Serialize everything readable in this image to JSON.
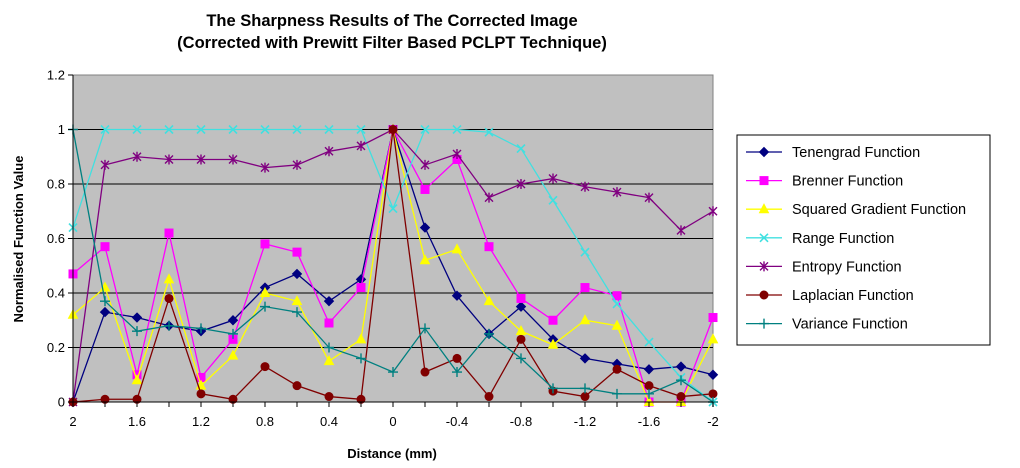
{
  "chart_data": {
    "type": "line",
    "title": "The Sharpness Results of The Corrected Image",
    "subtitle": "(Corrected with Prewitt Filter Based PCLPT Technique)",
    "xlabel": "Distance (mm)",
    "ylabel": "Normalised Function Value",
    "x": [
      2,
      1.8,
      1.6,
      1.4,
      1.2,
      1.0,
      0.8,
      0.6,
      0.4,
      0.2,
      0,
      -0.2,
      -0.4,
      -0.6,
      -0.8,
      -1.0,
      -1.2,
      -1.4,
      -1.6,
      -1.8,
      -2
    ],
    "x_tick_labels": [
      "2",
      "1.6",
      "1.2",
      "0.8",
      "0.4",
      "0",
      "-0.4",
      "-0.8",
      "-1.2",
      "-1.6",
      "-2"
    ],
    "y_tick_labels": [
      "0",
      "0.2",
      "0.4",
      "0.6",
      "0.8",
      "1",
      "1.2"
    ],
    "ylim": [
      0,
      1.2
    ],
    "grid": "horizontal",
    "plot_background": "#c0c0c0",
    "legend_position": "right",
    "series": [
      {
        "name": "Tenengrad Function",
        "color": "#000080",
        "marker": "diamond",
        "values": [
          0.0,
          0.33,
          0.31,
          0.28,
          0.26,
          0.3,
          0.42,
          0.47,
          0.37,
          0.45,
          1.0,
          0.64,
          0.39,
          0.25,
          0.35,
          0.23,
          0.16,
          0.14,
          0.12,
          0.13,
          0.1
        ]
      },
      {
        "name": "Brenner Function",
        "color": "#ff00ff",
        "marker": "square",
        "values": [
          0.47,
          0.57,
          0.1,
          0.62,
          0.09,
          0.23,
          0.58,
          0.55,
          0.29,
          0.42,
          1.0,
          0.78,
          0.89,
          0.57,
          0.38,
          0.3,
          0.42,
          0.39,
          0.0,
          0.0,
          0.31
        ]
      },
      {
        "name": "Squared Gradient Function",
        "color": "#ffff00",
        "marker": "triangle",
        "values": [
          0.32,
          0.42,
          0.08,
          0.45,
          0.06,
          0.17,
          0.4,
          0.37,
          0.15,
          0.23,
          1.0,
          0.52,
          0.56,
          0.37,
          0.26,
          0.21,
          0.3,
          0.28,
          0.0,
          0.0,
          0.23
        ]
      },
      {
        "name": "Range Function",
        "color": "#40e0e0",
        "marker": "x",
        "values": [
          0.64,
          1.0,
          1.0,
          1.0,
          1.0,
          1.0,
          1.0,
          1.0,
          1.0,
          1.0,
          0.71,
          1.0,
          1.0,
          0.99,
          0.93,
          0.74,
          0.55,
          0.36,
          0.22,
          0.09,
          0.0
        ]
      },
      {
        "name": "Entropy Function",
        "color": "#800080",
        "marker": "star",
        "values": [
          0.0,
          0.87,
          0.9,
          0.89,
          0.89,
          0.89,
          0.86,
          0.87,
          0.92,
          0.94,
          1.0,
          0.87,
          0.91,
          0.75,
          0.8,
          0.82,
          0.79,
          0.77,
          0.75,
          0.63,
          0.7
        ]
      },
      {
        "name": "Laplacian Function",
        "color": "#800000",
        "marker": "circle",
        "values": [
          0.0,
          0.01,
          0.01,
          0.38,
          0.03,
          0.01,
          0.13,
          0.06,
          0.02,
          0.01,
          1.0,
          0.11,
          0.16,
          0.02,
          0.23,
          0.04,
          0.02,
          0.12,
          0.06,
          0.02,
          0.03
        ]
      },
      {
        "name": "Variance Function",
        "color": "#008080",
        "marker": "plus",
        "values": [
          1.0,
          0.37,
          0.26,
          0.28,
          0.27,
          0.25,
          0.35,
          0.33,
          0.2,
          0.16,
          0.11,
          0.27,
          0.11,
          0.25,
          0.16,
          0.05,
          0.05,
          0.03,
          0.03,
          0.08,
          0.0
        ]
      }
    ]
  }
}
